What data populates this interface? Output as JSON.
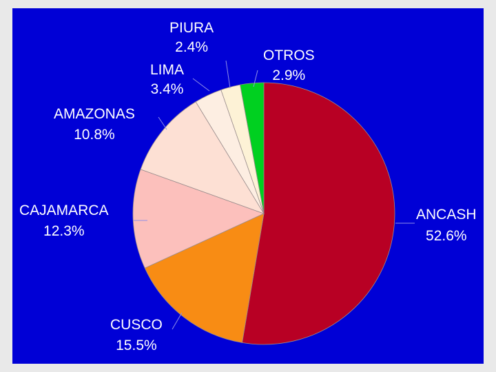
{
  "colors": {
    "background": "#0000d6",
    "page": "#e9e9e9"
  },
  "chart_data": {
    "type": "pie",
    "title": "",
    "start_category": "ANCASH",
    "direction": "clockwise",
    "slices": [
      {
        "name": "ANCASH",
        "label": "ANCASH",
        "pct_label": "52.6%",
        "value": 52.6,
        "color": "#b80024"
      },
      {
        "name": "CUSCO",
        "label": "CUSCO",
        "pct_label": "15.5%",
        "value": 15.5,
        "color": "#f88c14"
      },
      {
        "name": "CAJAMARCA",
        "label": "CAJAMARCA",
        "pct_label": "12.3%",
        "value": 12.3,
        "color": "#fcc0bc"
      },
      {
        "name": "AMAZONAS",
        "label": "AMAZONAS",
        "pct_label": "10.8%",
        "value": 10.8,
        "color": "#fde0d4"
      },
      {
        "name": "LIMA",
        "label": "LIMA",
        "pct_label": "3.4%",
        "value": 3.4,
        "color": "#fdeee2"
      },
      {
        "name": "PIURA",
        "label": "PIURA",
        "pct_label": "2.4%",
        "value": 2.4,
        "color": "#fdf2d6"
      },
      {
        "name": "OTROS",
        "label": "OTROS",
        "pct_label": "2.9%",
        "value": 2.9,
        "color": "#00d020"
      }
    ]
  }
}
